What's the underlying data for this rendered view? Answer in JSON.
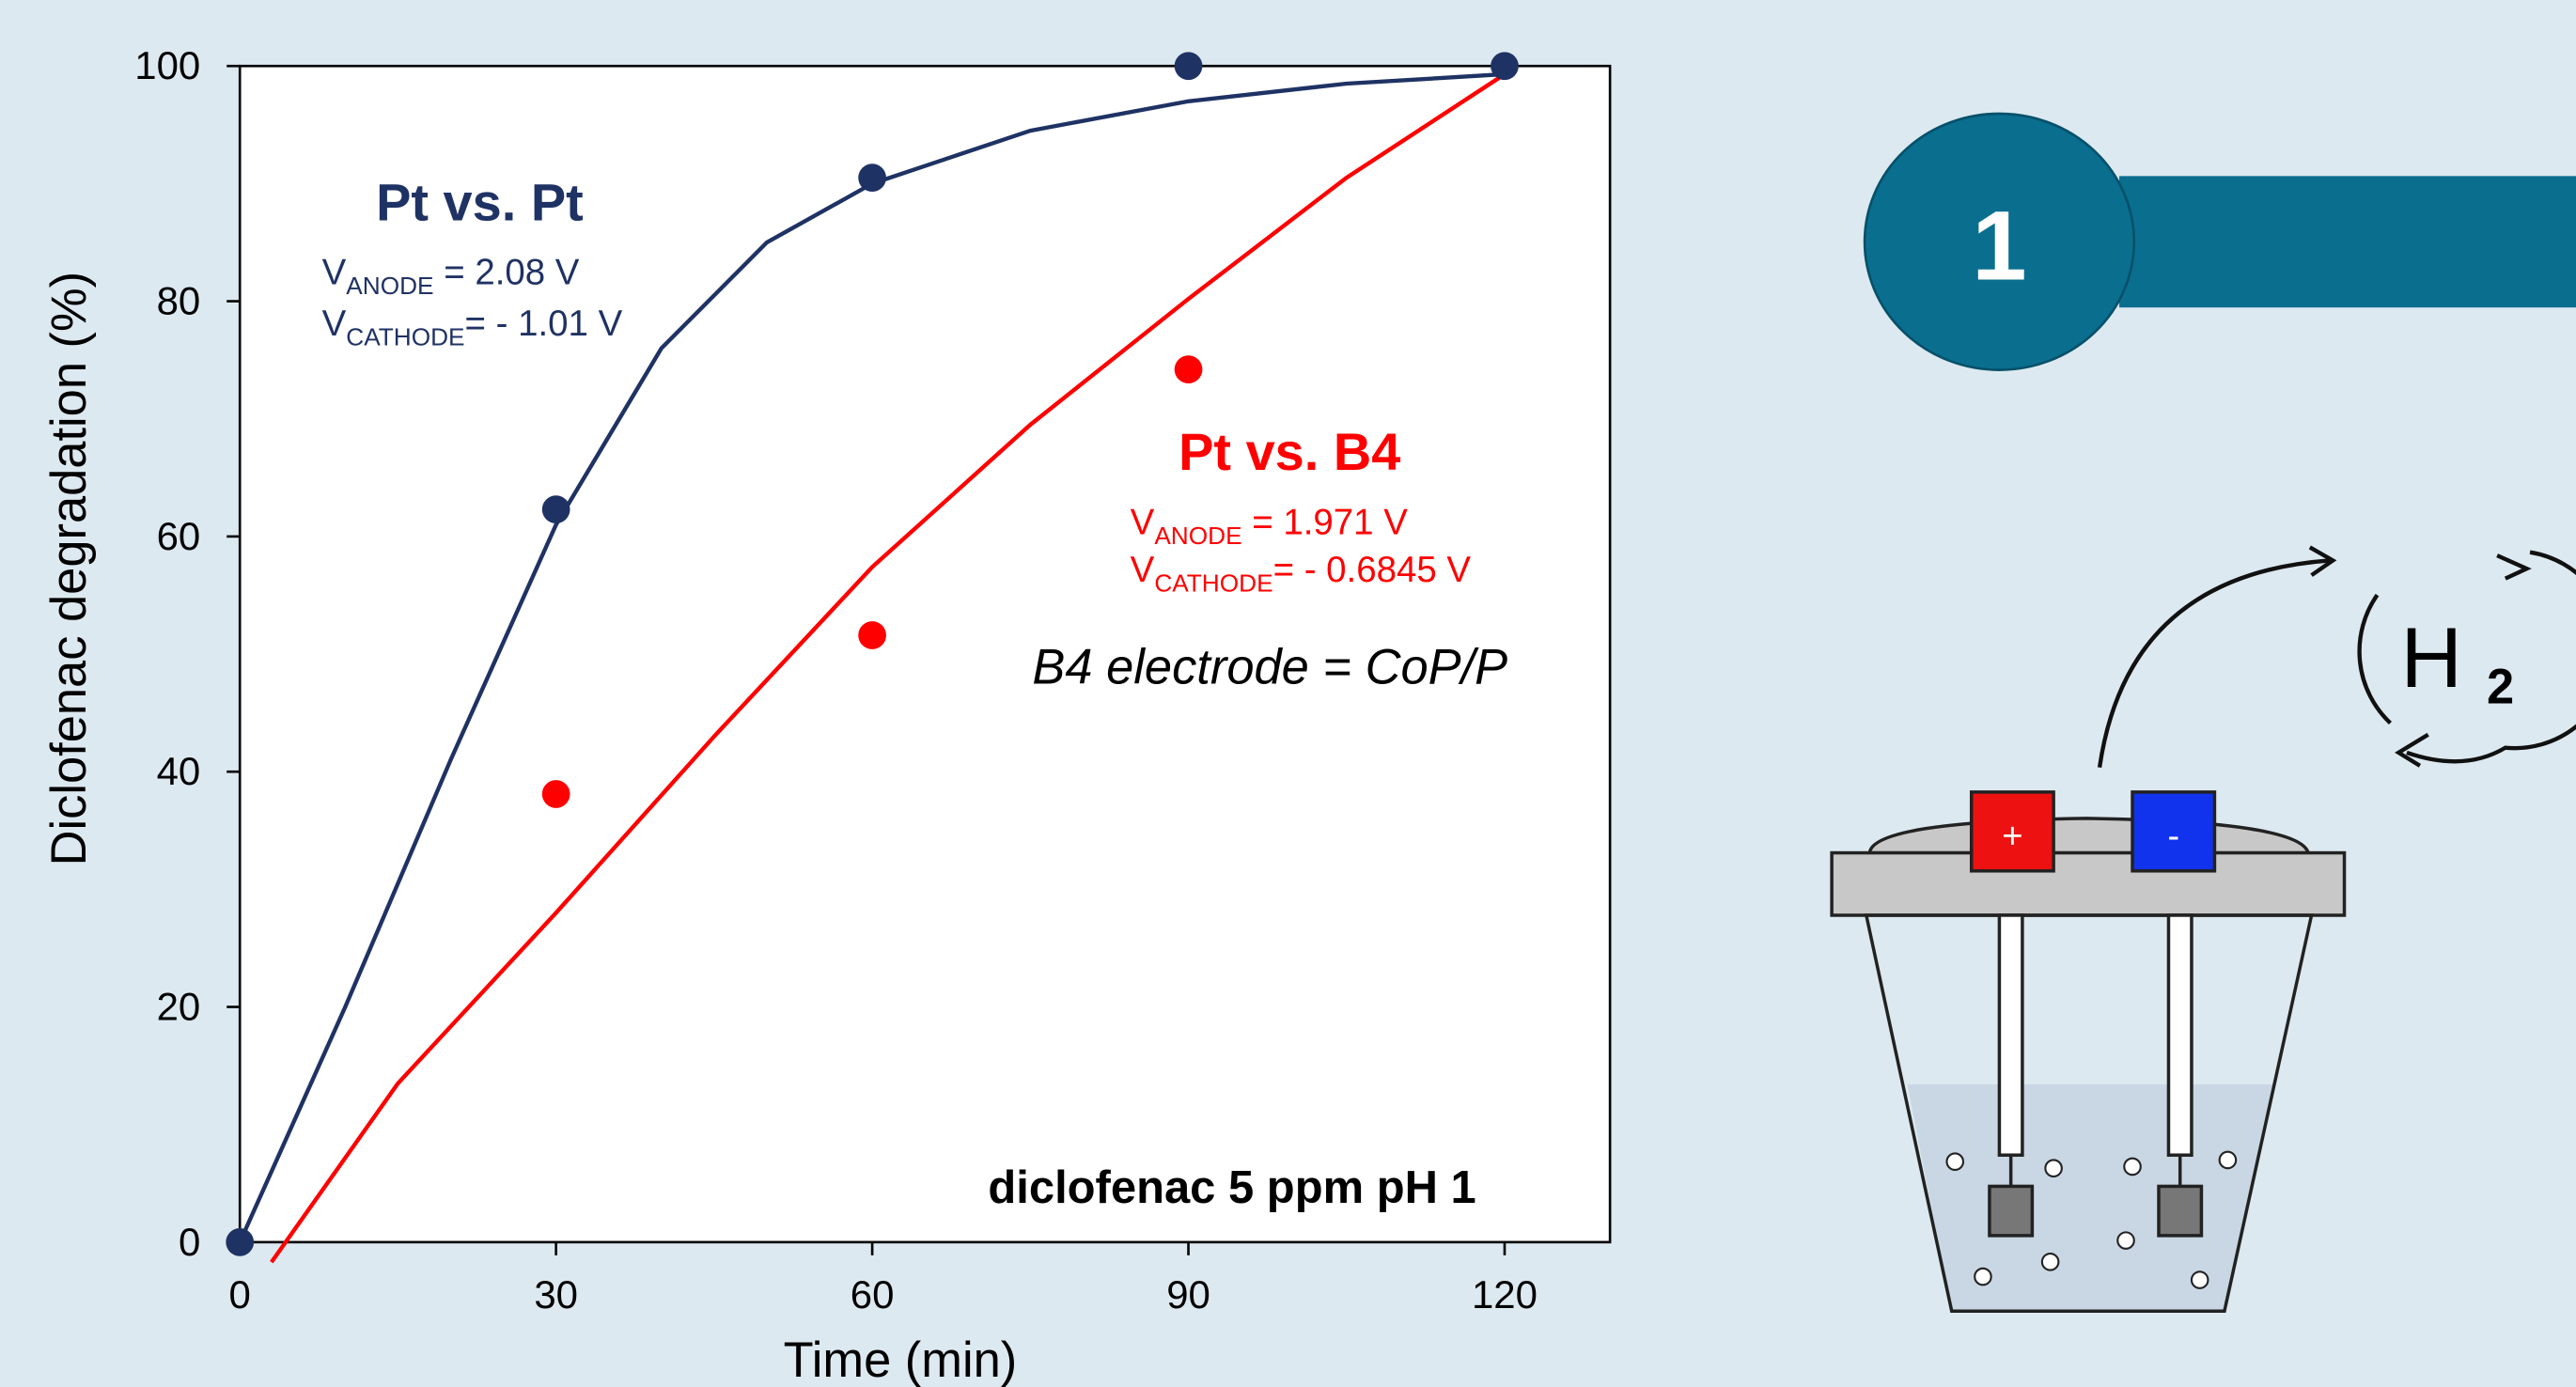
{
  "chart_data": {
    "type": "scatter",
    "x_label": "Time (min)",
    "y_label": "Diclofenac degradation (%)",
    "xlim": [
      0,
      130
    ],
    "ylim": [
      0,
      100
    ],
    "xticks": [
      0,
      30,
      60,
      90,
      120
    ],
    "yticks": [
      0,
      20,
      40,
      60,
      80,
      100
    ],
    "series": [
      {
        "name": "Pt vs. Pt",
        "color": "#1f3264",
        "x": [
          0,
          30,
          60,
          90,
          120
        ],
        "values": [
          0,
          62.3,
          90.5,
          100,
          100
        ],
        "fit": {
          "x": [
            0,
            10,
            20,
            30,
            40,
            50,
            60,
            75,
            90,
            105,
            120
          ],
          "values": [
            0,
            20,
            41,
            61,
            76,
            85,
            90,
            94.5,
            97,
            98.5,
            99.3
          ]
        },
        "notes": [
          {
            "symbol": "V",
            "subscript": "ANODE",
            "text": " = 2.08 V"
          },
          {
            "symbol": "V",
            "subscript": "CATHODE",
            "text": "= - 1.01 V"
          }
        ]
      },
      {
        "name": "Pt vs. B4",
        "color": "#ff0000",
        "x": [
          30,
          60,
          90
        ],
        "values": [
          38.1,
          51.6,
          74.2
        ],
        "fit": {
          "x": [
            3,
            15,
            30,
            45,
            60,
            75,
            90,
            105,
            120
          ],
          "values": [
            -1.7,
            13.5,
            28,
            43,
            57.4,
            69.5,
            80.2,
            90.5,
            99.3
          ]
        },
        "notes": [
          {
            "symbol": "V",
            "subscript": "ANODE",
            "text": " = 1.971 V"
          },
          {
            "symbol": "V",
            "subscript": "CATHODE",
            "text": "= - 0.6845 V"
          }
        ]
      }
    ],
    "annotations": [
      "B4 electrode = CoP/P",
      "diclofenac 5 ppm pH 1"
    ]
  },
  "diagram": {
    "step": "1",
    "plus": "+",
    "minus": "-",
    "gas": "H",
    "gas_subscript": "2"
  }
}
